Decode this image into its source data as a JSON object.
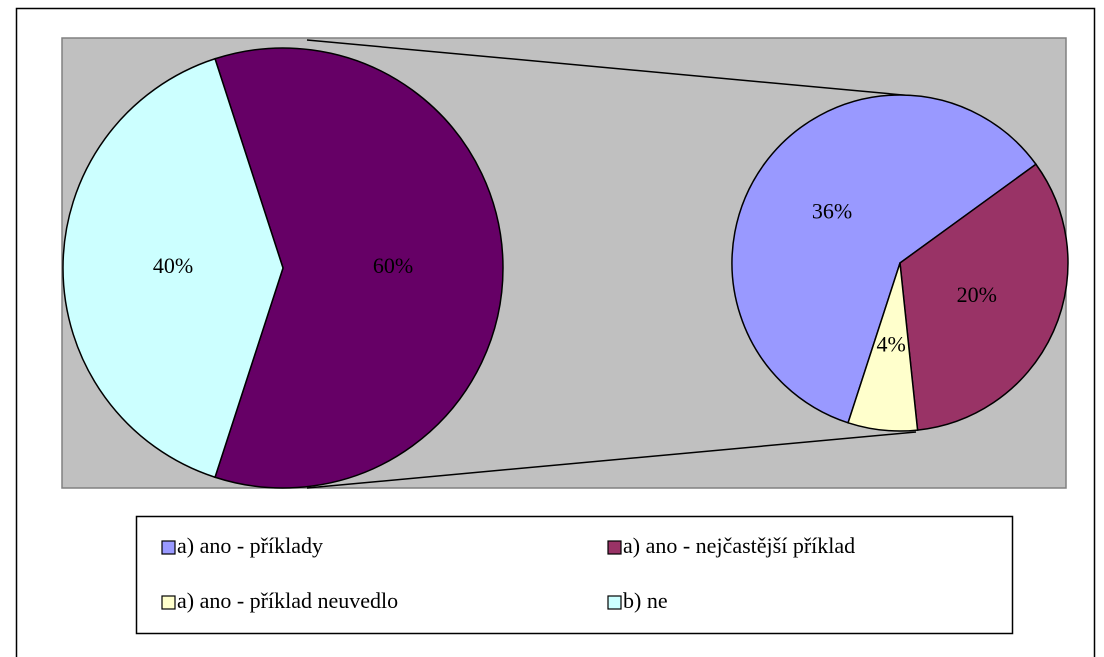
{
  "chart_data": {
    "type": "pie-of-pie",
    "categories": [
      "a) ano - příklady",
      "a) ano - nejčastější příklad",
      "a) ano - příklad neuvedlo",
      "b) ne"
    ],
    "values": [
      36,
      20,
      4,
      40
    ],
    "value_labels": [
      "36%",
      "20%",
      "4%",
      "40%"
    ],
    "colors": [
      "#9999ff",
      "#993366",
      "#ffffcc",
      "#ccffff"
    ],
    "other_value": 60,
    "other_value_label": "60%",
    "other_color": "#660066",
    "legend": "bottom"
  }
}
